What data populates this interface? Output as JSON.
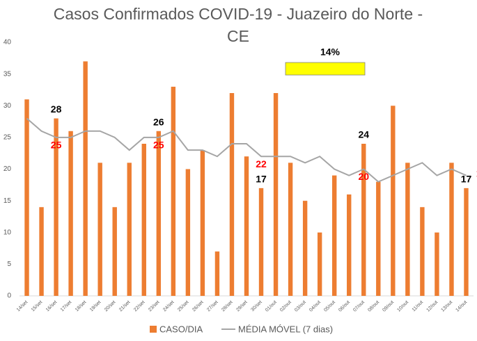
{
  "chart_data": {
    "type": "bar_line",
    "title": "Casos Confirmados COVID-19 - Juazeiro do Norte - CE",
    "categories": [
      "14/set",
      "15/set",
      "16/set",
      "17/set",
      "18/set",
      "19/set",
      "20/set",
      "21/set",
      "22/set",
      "23/set",
      "24/set",
      "25/set",
      "26/set",
      "27/set",
      "28/set",
      "29/set",
      "30/set",
      "01/out",
      "02/out",
      "03/out",
      "04/out",
      "05/out",
      "06/out",
      "07/out",
      "08/out",
      "09/out",
      "10/out",
      "11/out",
      "12/out",
      "13/out",
      "14/out"
    ],
    "series": [
      {
        "name": "CASO/DIA",
        "type": "bar",
        "color": "#ed7d31",
        "label_color": "#000000",
        "values": [
          31,
          14,
          28,
          26,
          37,
          21,
          14,
          21,
          24,
          26,
          33,
          20,
          23,
          7,
          32,
          22,
          17,
          32,
          21,
          15,
          10,
          19,
          16,
          24,
          18,
          30,
          21,
          14,
          10,
          21,
          17
        ]
      },
      {
        "name": "MÉDIA MÓVEL (7 dias)",
        "type": "line",
        "color": "#a5a5a5",
        "label_color": "#ff0000",
        "values": [
          28,
          26,
          25,
          25,
          26,
          26,
          25,
          23,
          25,
          25,
          26,
          23,
          23,
          22,
          24,
          24,
          22,
          22,
          22,
          21,
          22,
          20,
          19,
          20,
          18,
          19,
          20,
          21,
          19,
          20,
          19
        ]
      }
    ],
    "labeled_points": [
      2,
      9,
      16,
      23,
      30
    ],
    "annotation": {
      "text": "14%",
      "color": "#ffff00"
    },
    "ylim": [
      0,
      40
    ],
    "yticks": [
      0,
      5,
      10,
      15,
      20,
      25,
      30,
      35,
      40
    ],
    "grid": false
  }
}
